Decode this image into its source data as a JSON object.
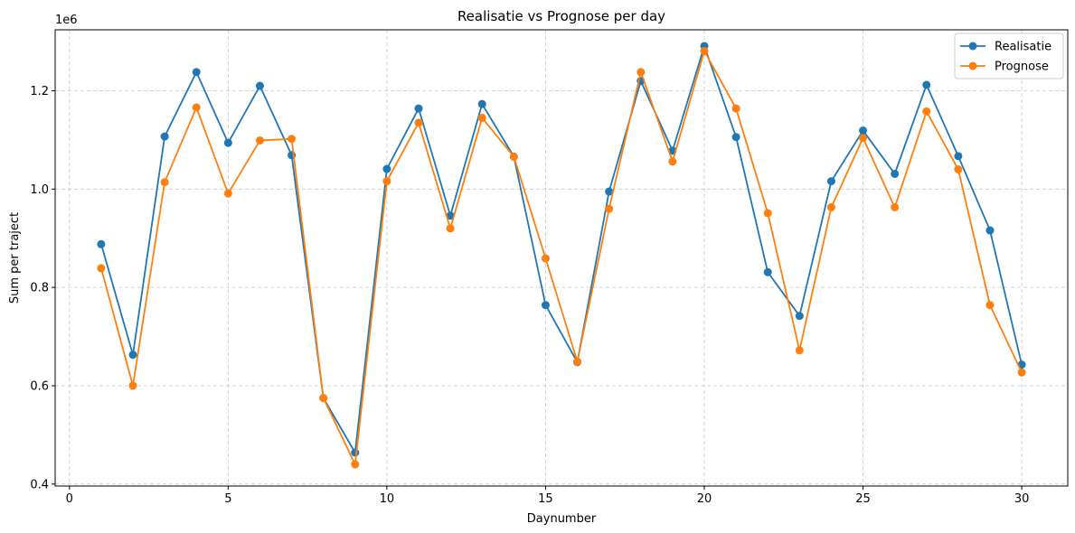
{
  "chart_data": {
    "type": "line",
    "title": "Realisatie vs Prognose per day",
    "xlabel": "Daynumber",
    "ylabel": "Sum per traject",
    "y_offset_label": "1e6",
    "xlim": [
      -0.45,
      31.45
    ],
    "ylim": [
      396000,
      1324000
    ],
    "xticks": [
      0,
      5,
      10,
      15,
      20,
      25,
      30
    ],
    "xtick_labels": [
      "0",
      "5",
      "10",
      "15",
      "20",
      "25",
      "30"
    ],
    "yticks": [
      400000,
      600000,
      800000,
      1000000,
      1200000
    ],
    "ytick_labels": [
      "0.4",
      "0.6",
      "0.8",
      "1.0",
      "1.2"
    ],
    "grid": true,
    "legend_position": "top-right",
    "x": [
      1,
      2,
      3,
      4,
      5,
      6,
      7,
      8,
      9,
      10,
      11,
      12,
      13,
      14,
      15,
      16,
      17,
      18,
      19,
      20,
      21,
      22,
      23,
      24,
      25,
      26,
      27,
      28,
      29,
      30
    ],
    "series": [
      {
        "name": "Realisatie",
        "color": "#1f77b4",
        "values": [
          888000,
          663000,
          1107000,
          1238000,
          1094000,
          1210000,
          1069000,
          575000,
          464000,
          1041000,
          1164000,
          946000,
          1173000,
          1066000,
          764000,
          648000,
          995000,
          1220000,
          1078000,
          1291000,
          1106000,
          831000,
          742000,
          1016000,
          1119000,
          1031000,
          1212000,
          1067000,
          916000,
          643000
        ]
      },
      {
        "name": "Prognose",
        "color": "#ff7f0e",
        "values": [
          839000,
          600000,
          1014000,
          1166000,
          991000,
          1099000,
          1102000,
          575000,
          440000,
          1016000,
          1135000,
          920000,
          1145000,
          1066000,
          859000,
          649000,
          960000,
          1238000,
          1056000,
          1281000,
          1164000,
          951000,
          672000,
          963000,
          1104000,
          963000,
          1158000,
          1040000,
          764000,
          627000
        ]
      }
    ]
  }
}
